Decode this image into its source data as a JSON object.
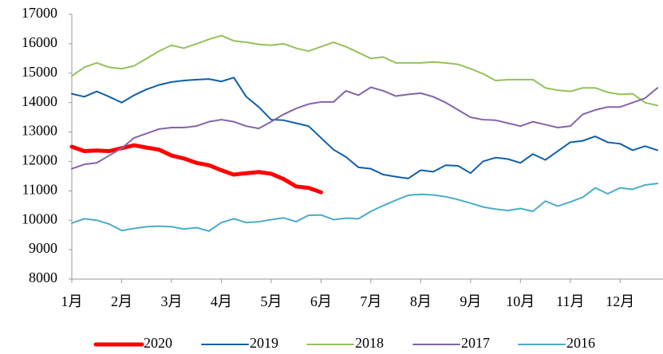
{
  "chart_data": {
    "type": "line",
    "x": [
      1,
      1.25,
      1.5,
      1.75,
      2,
      2.25,
      2.5,
      2.75,
      3,
      3.25,
      3.5,
      3.75,
      4,
      4.25,
      4.5,
      4.75,
      5,
      5.25,
      5.5,
      5.75,
      6,
      6.25,
      6.5,
      6.75,
      7,
      7.25,
      7.5,
      7.75,
      8,
      8.25,
      8.5,
      8.75,
      9,
      9.25,
      9.5,
      9.75,
      10,
      10.25,
      10.5,
      10.75,
      11,
      11.25,
      11.5,
      11.75,
      12,
      12.25,
      12.5,
      12.75
    ],
    "series": [
      {
        "name": "2020",
        "color": "#ff0000",
        "width": 5,
        "values": [
          12500,
          12350,
          12370,
          12350,
          12450,
          12550,
          12470,
          12400,
          12200,
          12100,
          11950,
          11870,
          11700,
          11550,
          11600,
          11640,
          11580,
          11400,
          11150,
          11100,
          10950,
          null,
          null,
          null,
          null,
          null,
          null,
          null,
          null,
          null,
          null,
          null,
          null,
          null,
          null,
          null,
          null,
          null,
          null,
          null,
          null,
          null,
          null,
          null,
          null,
          null,
          null,
          null
        ]
      },
      {
        "name": "2019",
        "color": "#0f5fa8",
        "width": 2,
        "values": [
          14300,
          14200,
          14380,
          14200,
          14000,
          14250,
          14450,
          14600,
          14700,
          14750,
          14780,
          14800,
          14720,
          14850,
          14200,
          13850,
          13420,
          13400,
          13300,
          13200,
          12800,
          12400,
          12150,
          11800,
          11750,
          11550,
          11480,
          11420,
          11700,
          11650,
          11870,
          11850,
          11600,
          12000,
          12130,
          12080,
          11950,
          12250,
          12050,
          12350,
          12650,
          12700,
          12850,
          12650,
          12600,
          12380,
          12520,
          12380
        ]
      },
      {
        "name": "2018",
        "color": "#92c25a",
        "width": 2,
        "values": [
          14900,
          15200,
          15350,
          15200,
          15150,
          15250,
          15500,
          15750,
          15950,
          15850,
          16000,
          16150,
          16280,
          16100,
          16050,
          15980,
          15950,
          16000,
          15850,
          15750,
          15900,
          16050,
          15900,
          15700,
          15500,
          15550,
          15350,
          15350,
          15350,
          15380,
          15350,
          15300,
          15150,
          14980,
          14750,
          14780,
          14780,
          14780,
          14500,
          14420,
          14380,
          14500,
          14500,
          14350,
          14280,
          14300,
          14000,
          13900
        ]
      },
      {
        "name": "2017",
        "color": "#8463a8",
        "width": 2,
        "values": [
          11750,
          11900,
          11950,
          12200,
          12450,
          12800,
          12950,
          13100,
          13150,
          13150,
          13200,
          13350,
          13420,
          13350,
          13200,
          13120,
          13350,
          13600,
          13800,
          13950,
          14020,
          14020,
          14400,
          14250,
          14520,
          14400,
          14220,
          14280,
          14320,
          14200,
          14000,
          13750,
          13500,
          13420,
          13400,
          13300,
          13200,
          13350,
          13250,
          13150,
          13200,
          13600,
          13750,
          13850,
          13850,
          14000,
          14150,
          14500
        ]
      },
      {
        "name": "2016",
        "color": "#4bacc6",
        "width": 2,
        "values": [
          9900,
          10050,
          10000,
          9870,
          9650,
          9720,
          9780,
          9800,
          9780,
          9700,
          9750,
          9630,
          9920,
          10050,
          9920,
          9950,
          10020,
          10080,
          9950,
          10170,
          10180,
          10020,
          10070,
          10050,
          10300,
          10500,
          10680,
          10850,
          10880,
          10860,
          10800,
          10700,
          10580,
          10450,
          10380,
          10330,
          10400,
          10300,
          10650,
          10480,
          10620,
          10780,
          11100,
          10900,
          11100,
          11050,
          11200,
          11250
        ]
      }
    ],
    "xlim": [
      1,
      12.86
    ],
    "xticks": [
      {
        "value": 1,
        "label": "1月"
      },
      {
        "value": 2,
        "label": "2月"
      },
      {
        "value": 3,
        "label": "3月"
      },
      {
        "value": 4,
        "label": "4月"
      },
      {
        "value": 5,
        "label": "5月"
      },
      {
        "value": 6,
        "label": "6月"
      },
      {
        "value": 7,
        "label": "7月"
      },
      {
        "value": 8,
        "label": "8月"
      },
      {
        "value": 9,
        "label": "9月"
      },
      {
        "value": 10,
        "label": "10月"
      },
      {
        "value": 11,
        "label": "11月"
      },
      {
        "value": 12,
        "label": "12月"
      }
    ],
    "ylim": [
      8000,
      17000
    ],
    "yticks": [
      8000,
      9000,
      10000,
      11000,
      12000,
      13000,
      14000,
      15000,
      16000,
      17000
    ],
    "grid": false,
    "legend": "bottom"
  }
}
